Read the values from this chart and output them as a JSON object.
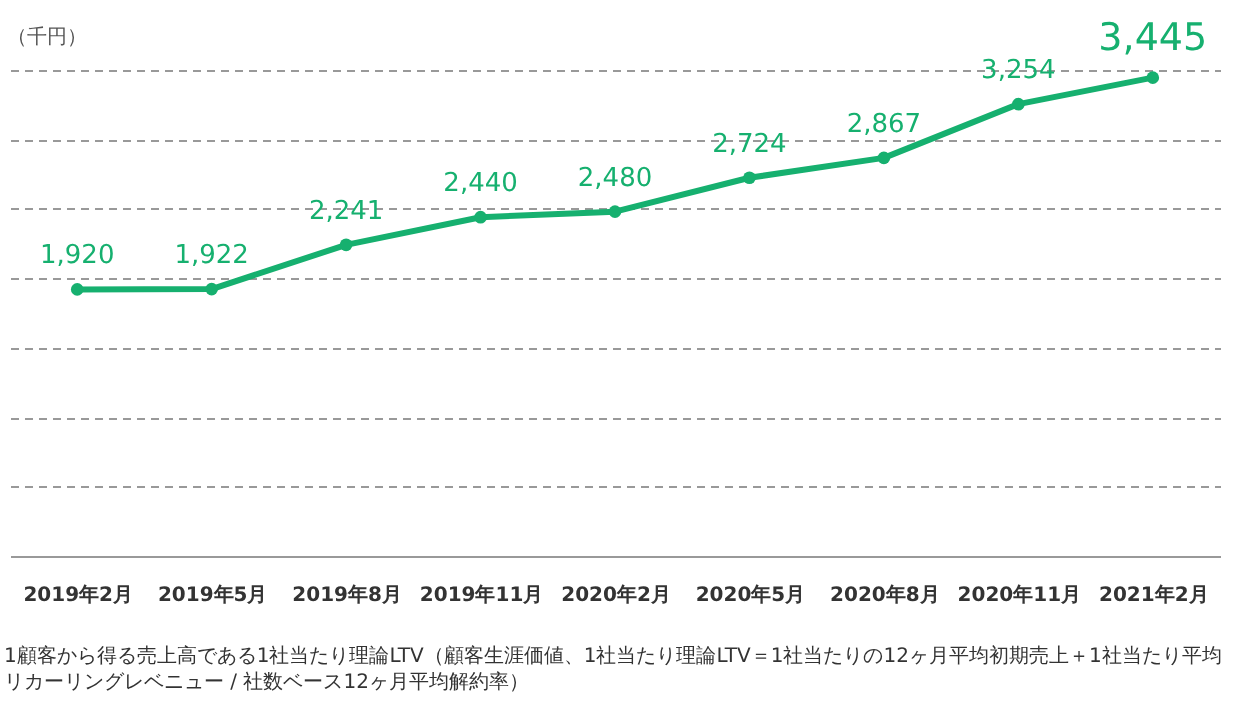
{
  "chart_data": {
    "type": "line",
    "ylabel": "（千円）",
    "categories": [
      "2019年2月",
      "2019年5月",
      "2019年8月",
      "2019年11月",
      "2020年2月",
      "2020年5月",
      "2020年8月",
      "2020年11月",
      "2021年2月"
    ],
    "series": [
      {
        "color": "#16b06f",
        "values": [
          1920,
          1922,
          2241,
          2440,
          2480,
          2724,
          2867,
          3254,
          3445
        ],
        "value_labels": [
          "1,920",
          "1,922",
          "2,241",
          "2,440",
          "2,480",
          "2,724",
          "2,867",
          "3,254",
          "3,445"
        ]
      }
    ],
    "tick_labels": "x",
    "grid": "y",
    "marker": "circle",
    "line_style": "solid",
    "annotations": [
      "1顧客から得る売上高である1社当たり理論LTV（顧客生涯価値、1社当たり理論LTV＝1社当たりの12ヶ月平均初期売上＋1社当たり平均リカーリングレベニュー / 社数ベース12ヶ月平均解約率）"
    ]
  }
}
